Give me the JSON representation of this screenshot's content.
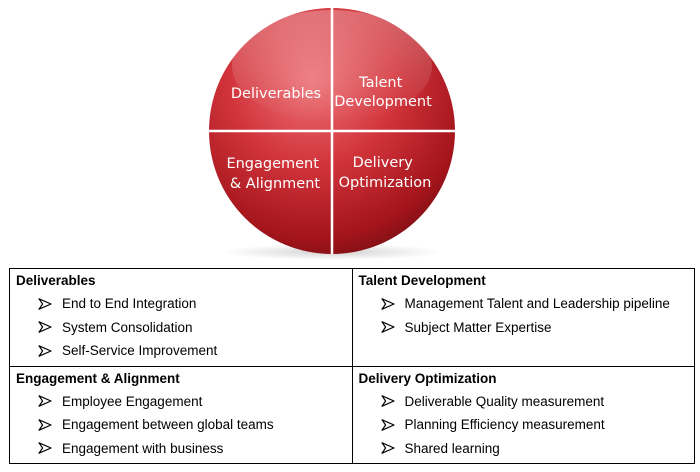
{
  "diagram": {
    "quadrants": {
      "top_left": "Deliverables",
      "top_right": [
        "Talent",
        "Development"
      ],
      "bottom_left": [
        "Engagement",
        "& Alignment"
      ],
      "bottom_right": [
        "Delivery",
        "Optimization"
      ]
    },
    "colors": {
      "circle_light": "#e8686e",
      "circle_mid": "#c8232b",
      "circle_dark": "#7a0f14",
      "divider": "#ffffff",
      "label": "#ffffff"
    }
  },
  "table": {
    "cells": [
      {
        "title": "Deliverables",
        "items": [
          "End to End Integration",
          "System Consolidation",
          "Self-Service Improvement"
        ]
      },
      {
        "title": "Talent Development",
        "items": [
          "Management Talent and Leadership pipeline",
          "Subject Matter Expertise"
        ]
      },
      {
        "title": "Engagement & Alignment",
        "items": [
          "Employee Engagement",
          "Engagement between global teams",
          "Engagement with business"
        ]
      },
      {
        "title": "Delivery Optimization",
        "items": [
          "Deliverable Quality measurement",
          "Planning Efficiency measurement",
          "Shared learning"
        ]
      }
    ],
    "bullet_icon": "arrow-bullet-icon"
  }
}
